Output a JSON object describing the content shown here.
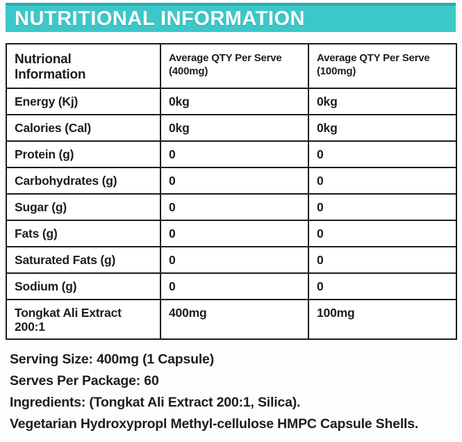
{
  "banner": {
    "title": "NUTRITIONAL INFORMATION"
  },
  "colors": {
    "banner_bg": "#3cc7c9",
    "banner_top_edge": "#2aabb0",
    "banner_text": "#ffffff",
    "table_border": "#1b1b1b",
    "text": "#1d1d1d",
    "background": "#fdfdfd"
  },
  "table": {
    "headers": {
      "col0": "Nutrional Information",
      "col1": "Average QTY Per Serve (400mg)",
      "col2": "Average QTY Per Serve (100mg)"
    },
    "rows": [
      {
        "label": "Energy (Kj)",
        "qty400": "0kg",
        "qty100": "0kg"
      },
      {
        "label": "Calories (Cal)",
        "qty400": "0kg",
        "qty100": "0kg"
      },
      {
        "label": "Protein (g)",
        "qty400": "0",
        "qty100": "0"
      },
      {
        "label": "Carbohydrates (g)",
        "qty400": "0",
        "qty100": "0"
      },
      {
        "label": "Sugar (g)",
        "qty400": "0",
        "qty100": "0"
      },
      {
        "label": "Fats (g)",
        "qty400": "0",
        "qty100": "0"
      },
      {
        "label": "Saturated Fats (g)",
        "qty400": "0",
        "qty100": "0"
      },
      {
        "label": "Sodium (g)",
        "qty400": "0",
        "qty100": "0"
      },
      {
        "label": "Tongkat Ali Extract 200:1",
        "qty400": "400mg",
        "qty100": "100mg"
      }
    ]
  },
  "footer": {
    "serving_size": "Serving Size: 400mg (1 Capsule)",
    "serves_per_package": "Serves Per Package: 60",
    "ingredients": "Ingredients: (Tongkat Ali Extract 200:1, Silica).",
    "capsule_note": "Vegetarian Hydroxypropl Methyl-cellulose HMPC Capsule Shells."
  }
}
